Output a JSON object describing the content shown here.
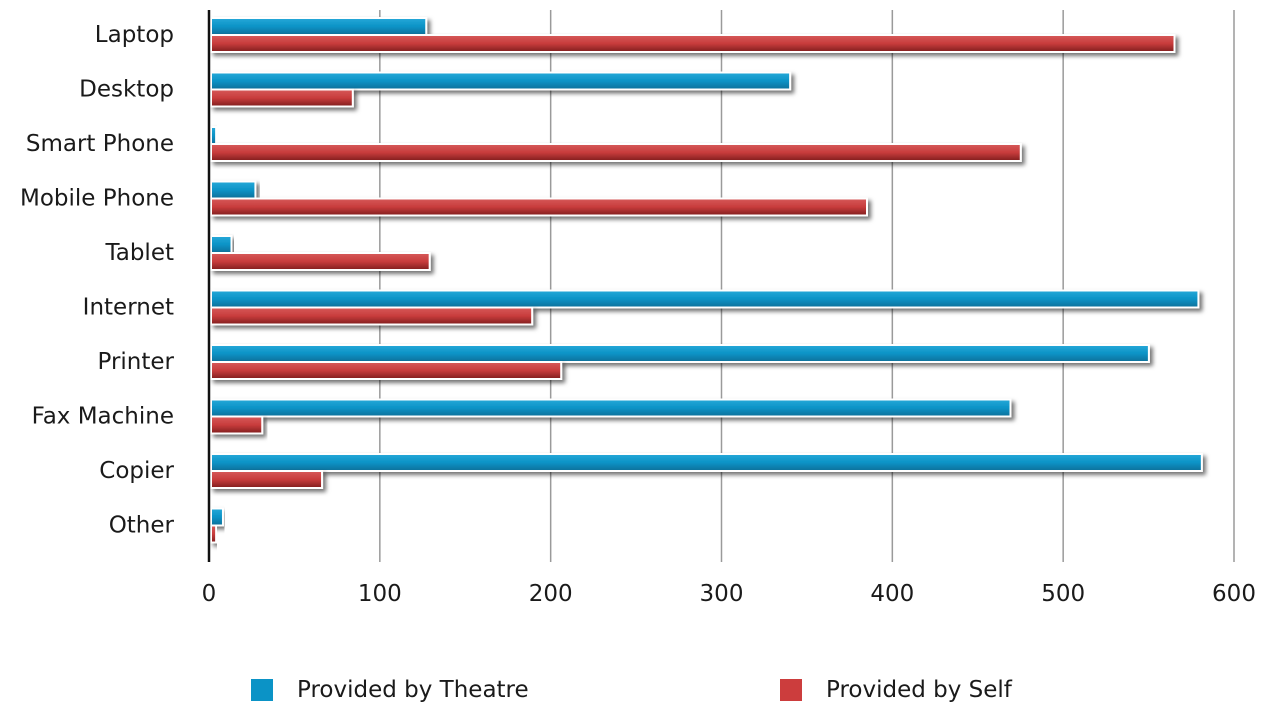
{
  "chart_data": {
    "type": "bar",
    "orientation": "horizontal",
    "categories": [
      "Laptop",
      "Desktop",
      "Smart Phone",
      "Mobile Phone",
      "Tablet",
      "Internet",
      "Printer",
      "Fax Machine",
      "Copier",
      "Other"
    ],
    "series": [
      {
        "name": "Provided by Theatre",
        "color": "#0b93c6",
        "values": [
          126,
          339,
          3,
          26,
          12,
          578,
          549,
          468,
          580,
          7
        ]
      },
      {
        "name": "Provided by Self",
        "color": "#cc3d3d",
        "values": [
          564,
          83,
          474,
          384,
          128,
          188,
          205,
          30,
          65,
          3
        ]
      }
    ],
    "xlim": [
      0,
      600
    ],
    "xticks": [
      "0",
      "100",
      "200",
      "300",
      "400",
      "500",
      "600"
    ],
    "grid": true,
    "legend_position": "bottom"
  }
}
